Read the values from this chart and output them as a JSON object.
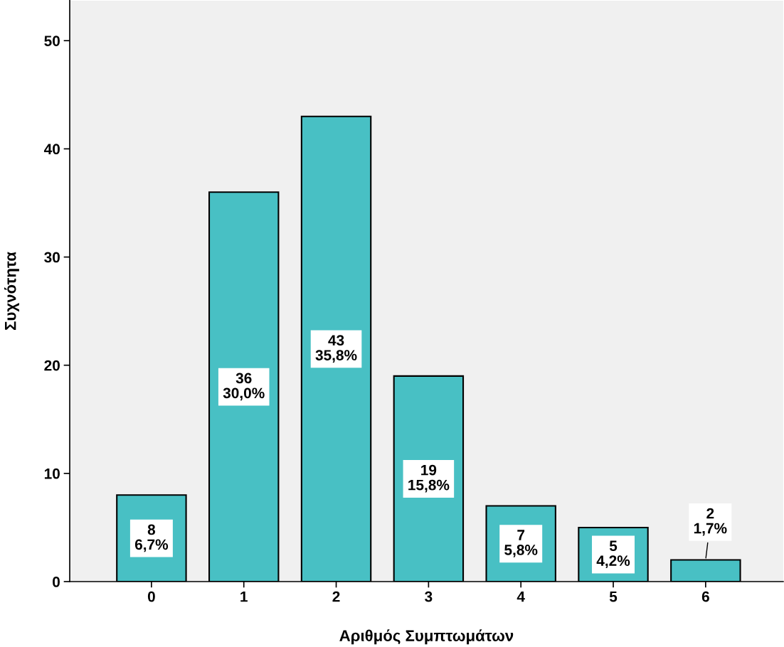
{
  "chart_data": {
    "type": "bar",
    "xlabel": "Αριθμός Συμπτωμάτων",
    "ylabel": "Συχνότητα",
    "categories": [
      "0",
      "1",
      "2",
      "3",
      "4",
      "5",
      "6"
    ],
    "values": [
      8,
      36,
      43,
      19,
      7,
      5,
      2
    ],
    "value_labels": [
      "8\n6,7%",
      "36\n30,0%",
      "43\n35,8%",
      "19\n15,8%",
      "7\n5,8%",
      "5\n4,2%",
      "2\n1,7%"
    ],
    "color": "#48c0c4",
    "ylim": [
      0,
      53.7
    ],
    "yticks": [
      0,
      10,
      20,
      30,
      40,
      50
    ],
    "grid": false
  }
}
